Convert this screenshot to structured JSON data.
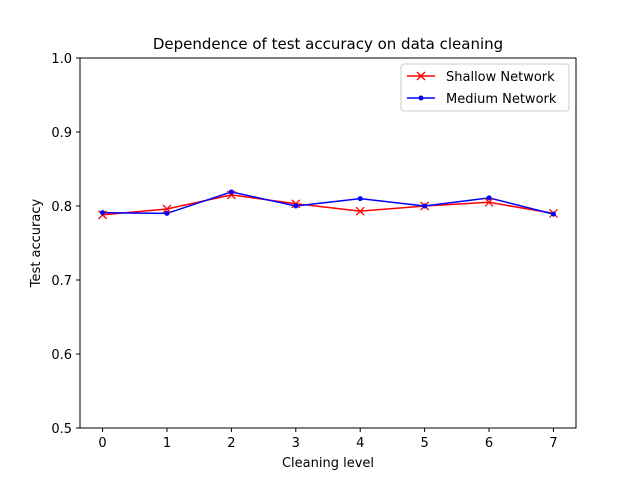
{
  "chart_data": {
    "type": "line",
    "title": "Dependence of test accuracy on data cleaning",
    "xlabel": "Cleaning level",
    "ylabel": "Test accuracy",
    "x": [
      0,
      1,
      2,
      3,
      4,
      5,
      6,
      7
    ],
    "xlim": [
      -0.35,
      7.35
    ],
    "ylim": [
      0.5,
      1.0
    ],
    "xticks": [
      0,
      1,
      2,
      3,
      4,
      5,
      6,
      7
    ],
    "yticks": [
      0.5,
      0.6,
      0.7,
      0.8,
      0.9,
      1.0
    ],
    "xtick_labels": [
      "0",
      "1",
      "2",
      "3",
      "4",
      "5",
      "6",
      "7"
    ],
    "ytick_labels": [
      "0.5",
      "0.6",
      "0.7",
      "0.8",
      "0.9",
      "1.0"
    ],
    "grid": false,
    "legend_position": "top-right",
    "series": [
      {
        "name": "Shallow Network",
        "color": "#ff0000",
        "marker": "x",
        "values": [
          0.788,
          0.796,
          0.815,
          0.803,
          0.793,
          0.8,
          0.805,
          0.79
        ]
      },
      {
        "name": "Medium Network",
        "color": "#0000ff",
        "marker": "dot",
        "values": [
          0.791,
          0.79,
          0.819,
          0.8,
          0.81,
          0.8,
          0.811,
          0.789
        ]
      }
    ]
  }
}
